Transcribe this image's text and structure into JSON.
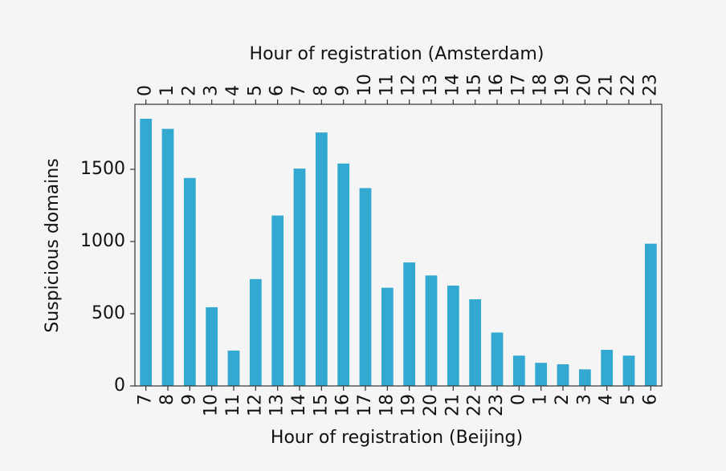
{
  "chart_data": {
    "type": "bar",
    "xlabel": "Hour of registration (Beijing)",
    "x2label": "Hour of registration (Amsterdam)",
    "ylabel": "Suspicious domains",
    "categories": [
      "7",
      "8",
      "9",
      "10",
      "11",
      "12",
      "13",
      "14",
      "15",
      "16",
      "17",
      "18",
      "19",
      "20",
      "21",
      "22",
      "23",
      "0",
      "1",
      "2",
      "3",
      "4",
      "5",
      "6"
    ],
    "top_categories": [
      "0",
      "1",
      "2",
      "3",
      "4",
      "5",
      "6",
      "7",
      "8",
      "9",
      "10",
      "11",
      "12",
      "13",
      "14",
      "15",
      "16",
      "17",
      "18",
      "19",
      "20",
      "21",
      "22",
      "23"
    ],
    "values": [
      1850,
      1780,
      1440,
      545,
      245,
      740,
      1180,
      1505,
      1755,
      1540,
      1370,
      680,
      855,
      765,
      695,
      600,
      370,
      210,
      160,
      150,
      115,
      250,
      210,
      985
    ],
    "color": "#33a8d0",
    "ylim": [
      0,
      1950
    ],
    "yticks": [
      0,
      500,
      1000,
      1500
    ],
    "grid": false
  }
}
